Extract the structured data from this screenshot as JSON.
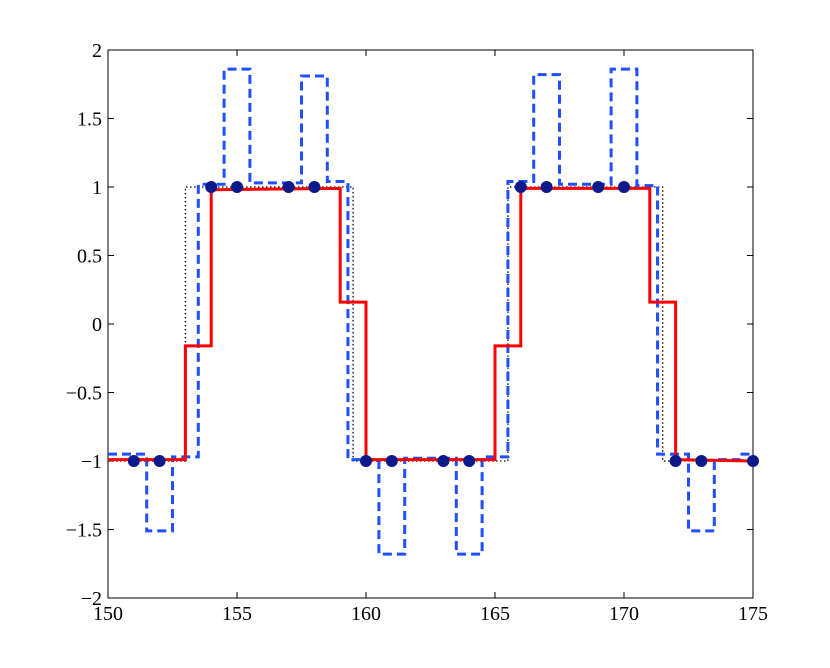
{
  "chart_data": {
    "type": "line",
    "xlim": [
      150,
      175
    ],
    "ylim": [
      -2,
      2
    ],
    "x_ticks": [
      150,
      155,
      160,
      165,
      170,
      175
    ],
    "y_ticks": [
      -2,
      -1.5,
      -1,
      -0.5,
      0,
      0.5,
      1,
      1.5,
      2
    ],
    "x_tick_labels": [
      "150",
      "155",
      "160",
      "165",
      "170",
      "175"
    ],
    "y_tick_labels": [
      "−2",
      "−1.5",
      "−1",
      "−0.5",
      "0",
      "0.5",
      "1",
      "1.5",
      "2"
    ],
    "grid": false,
    "legend": "none",
    "series": [
      {
        "style": "dotted",
        "color": "#000000",
        "x": [
          150,
          153,
          153,
          159.5,
          159.5,
          165.5,
          165.5,
          171.5,
          171.5,
          175
        ],
        "y": [
          -1,
          -1,
          1,
          1,
          -1,
          -1,
          1,
          1,
          -1,
          -1
        ]
      },
      {
        "style": "dashed",
        "color": "#1f4fff",
        "x": [
          150,
          151.5,
          151.5,
          152.5,
          152.5,
          153.5,
          153.5,
          154.5,
          154.5,
          155.5,
          155.5,
          157.5,
          157.5,
          158.5,
          158.5,
          159.3,
          159.3,
          160.5,
          160.5,
          161.5,
          161.5,
          163.5,
          163.5,
          164.5,
          164.5,
          165.5,
          165.5,
          166.5,
          166.5,
          167.5,
          167.5,
          169.5,
          169.5,
          170.5,
          170.5,
          171.3,
          171.3,
          172.5,
          172.5,
          173.5,
          173.5,
          174.5,
          174.5,
          175
        ],
        "y": [
          -0.95,
          -0.95,
          -1.51,
          -1.51,
          -0.97,
          -0.97,
          1.02,
          1.02,
          1.86,
          1.86,
          1.03,
          1.03,
          1.81,
          1.81,
          1.04,
          1.04,
          -0.99,
          -0.99,
          -1.68,
          -1.68,
          -0.98,
          -0.98,
          -1.68,
          -1.68,
          -0.97,
          -0.97,
          1.04,
          1.04,
          1.82,
          1.82,
          1.02,
          1.02,
          1.86,
          1.86,
          1.01,
          1.01,
          -0.95,
          -0.95,
          -1.51,
          -1.51,
          -0.99,
          -0.99,
          -0.95,
          -0.95
        ]
      },
      {
        "style": "solid",
        "color": "#ff0000",
        "x": [
          150,
          153,
          153,
          154,
          154,
          159,
          159,
          160,
          160,
          165,
          165,
          166,
          166,
          171,
          171,
          172,
          172,
          175
        ],
        "y": [
          -0.99,
          -0.99,
          -0.16,
          -0.16,
          0.98,
          0.99,
          0.16,
          0.16,
          -0.99,
          -0.99,
          -0.16,
          -0.16,
          0.99,
          0.99,
          0.16,
          0.16,
          -0.99,
          -1
        ]
      },
      {
        "style": "markers",
        "color": "#0a1a8a",
        "x": [
          151,
          152,
          154,
          155,
          157,
          158,
          160,
          161,
          163,
          164,
          166,
          167,
          169,
          170,
          172,
          173,
          175
        ],
        "y": [
          -1,
          -1,
          1,
          1,
          1,
          1,
          -1,
          -1,
          -1,
          -1,
          1,
          1,
          1,
          1,
          -1,
          -1,
          -1
        ]
      }
    ]
  }
}
